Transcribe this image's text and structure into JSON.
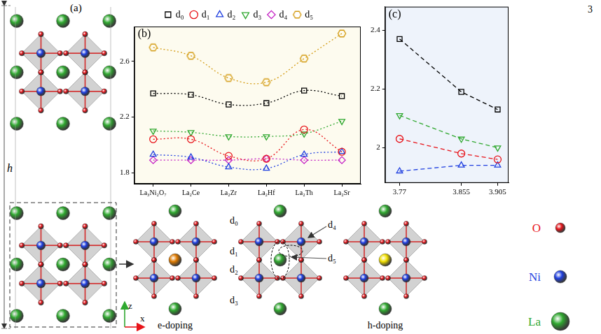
{
  "page_number": "3",
  "panel_a": {
    "label": "(a)",
    "height_label": "h",
    "axis_labels": [
      "z",
      "x"
    ],
    "structure_labels": [
      "e-doping",
      "h-doping"
    ],
    "distance_labels": [
      "d₀",
      "d₁",
      "d₂",
      "d₃",
      "d₄",
      "d₅"
    ]
  },
  "atom_legend": [
    {
      "name": "O",
      "color": "#e8141a"
    },
    {
      "name": "Ni",
      "color": "#1f3fe0"
    },
    {
      "name": "La",
      "color": "#2fa82f"
    }
  ],
  "chart_data": [
    {
      "type": "line",
      "title": "(b)",
      "categories": [
        "La₃Ni₂O₇",
        "La₂Ce",
        "La₂Zr",
        "La₂Hf",
        "La₂Th",
        "La₂Sr"
      ],
      "series": [
        {
          "name": "d₀",
          "color": "#000000",
          "marker": "square",
          "line_style": "dotted",
          "values": [
            2.37,
            2.36,
            2.29,
            2.3,
            2.39,
            2.35
          ]
        },
        {
          "name": "d₁",
          "color": "#e8141a",
          "marker": "circle",
          "line_style": "dotted",
          "values": [
            2.04,
            2.04,
            1.92,
            1.9,
            2.11,
            1.95
          ]
        },
        {
          "name": "d₂",
          "color": "#1f3fe0",
          "marker": "triangle",
          "line_style": "dotted",
          "values": [
            1.93,
            1.91,
            1.84,
            1.83,
            1.93,
            1.95
          ]
        },
        {
          "name": "d₃",
          "color": "#2fa82f",
          "marker": "triangle_down",
          "line_style": "dotted",
          "values": [
            2.1,
            2.09,
            2.06,
            2.06,
            2.08,
            2.17
          ]
        },
        {
          "name": "d₄",
          "color": "#c41fc4",
          "marker": "diamond",
          "line_style": "dotted",
          "values": [
            1.89,
            1.89,
            1.89,
            1.9,
            1.89,
            1.89
          ]
        },
        {
          "name": "d₅",
          "color": "#d39a10",
          "marker": "hexagon",
          "line_style": "dotted",
          "values": [
            2.7,
            2.64,
            2.48,
            2.45,
            2.62,
            2.8
          ]
        }
      ],
      "ylim": [
        1.72,
        2.85
      ],
      "yticks": [
        1.8,
        2.2,
        2.6
      ],
      "grid": false,
      "legend": "top"
    },
    {
      "type": "line",
      "title": "(c)",
      "x": [
        3.77,
        3.855,
        3.905
      ],
      "series": [
        {
          "name": "d₀",
          "color": "#000000",
          "marker": "square",
          "line_style": "dashed",
          "values": [
            2.37,
            2.19,
            2.13
          ]
        },
        {
          "name": "d₁",
          "color": "#e8141a",
          "marker": "circle",
          "line_style": "dashed",
          "values": [
            2.03,
            1.98,
            1.96
          ]
        },
        {
          "name": "d₂",
          "color": "#1f3fe0",
          "marker": "triangle",
          "line_style": "dashed",
          "values": [
            1.92,
            1.94,
            1.94
          ]
        },
        {
          "name": "d₃",
          "color": "#2fa82f",
          "marker": "triangle_down",
          "line_style": "dashed",
          "values": [
            2.11,
            2.03,
            2.0
          ]
        }
      ],
      "xlim": [
        3.75,
        3.92
      ],
      "xticks": [
        3.77,
        3.855,
        3.905
      ],
      "ylim": [
        1.88,
        2.48
      ],
      "yticks": [
        2,
        2.2,
        2.4
      ],
      "grid": false
    }
  ]
}
